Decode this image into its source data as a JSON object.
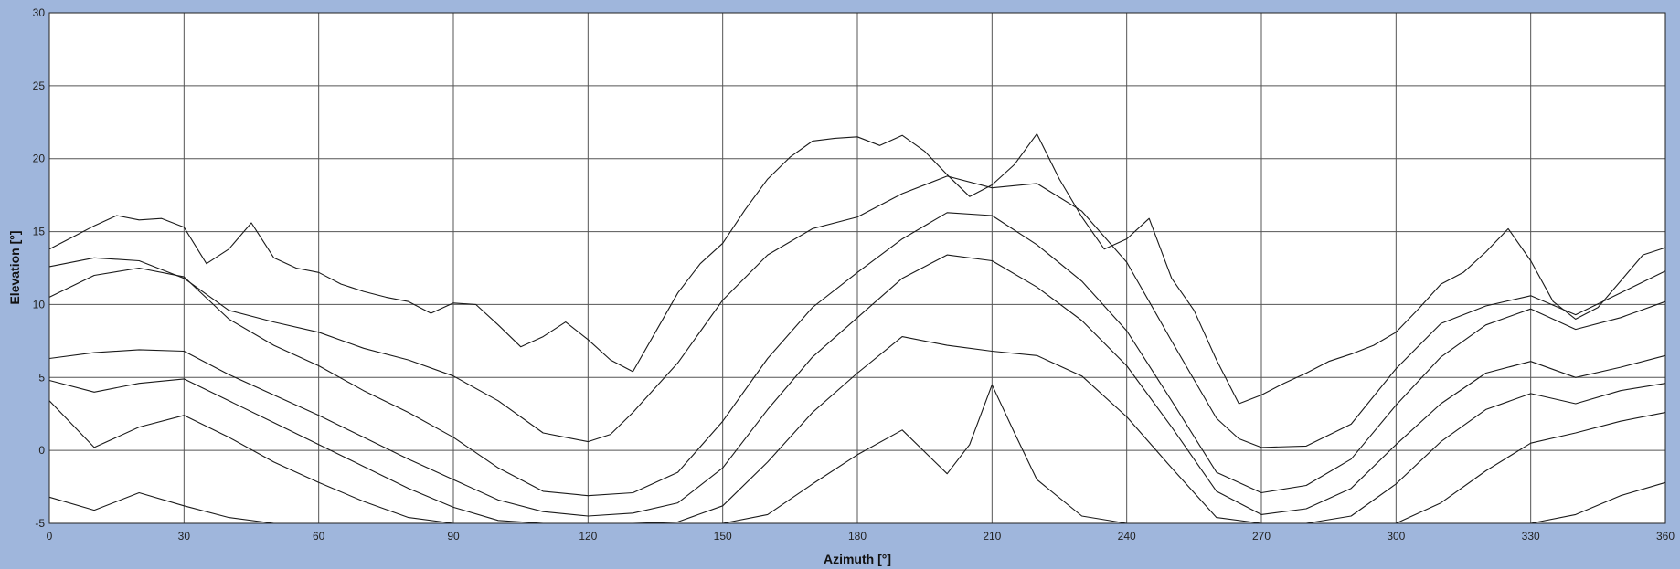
{
  "chart_data": {
    "type": "line",
    "title": "",
    "xlabel": "Azimuth [°]",
    "ylabel": "Elevation [°]",
    "xlim": [
      0,
      360
    ],
    "ylim": [
      -5,
      30
    ],
    "x_ticks": [
      0,
      30,
      60,
      90,
      120,
      150,
      180,
      210,
      240,
      270,
      300,
      330,
      360
    ],
    "y_ticks": [
      -5,
      0,
      5,
      10,
      15,
      20,
      25,
      30
    ],
    "grid": true,
    "legend": "none",
    "colors": {
      "frame": "#9fb6dc",
      "plot_bg": "#ffffff",
      "line": "#1a1a1a",
      "grid": "#555555"
    },
    "series": [
      {
        "x": [
          0,
          5,
          10,
          15,
          20,
          25,
          30,
          35,
          40,
          45,
          50,
          55,
          60,
          65,
          70,
          75,
          80,
          85,
          90,
          95,
          100,
          105,
          110,
          115,
          120,
          125,
          130,
          135,
          140,
          145,
          150,
          155,
          160,
          165,
          170,
          175,
          180,
          185,
          190,
          195,
          200,
          205,
          210,
          215,
          220,
          225,
          230,
          235,
          240,
          245,
          250,
          255,
          260,
          265,
          270,
          275,
          280,
          285,
          290,
          295,
          300,
          305,
          310,
          315,
          320,
          325,
          330,
          335,
          340,
          345,
          350,
          355,
          360
        ],
        "values": [
          13.8,
          14.6,
          15.4,
          16.1,
          15.8,
          15.9,
          15.3,
          12.8,
          13.8,
          15.6,
          13.2,
          12.5,
          12.2,
          11.4,
          10.9,
          10.5,
          10.2,
          9.4,
          10.1,
          10.0,
          8.6,
          7.1,
          7.8,
          8.8,
          7.6,
          6.2,
          5.4,
          8.1,
          10.8,
          12.8,
          14.2,
          16.5,
          18.6,
          20.1,
          21.2,
          21.4,
          21.5,
          20.9,
          21.6,
          20.5,
          18.9,
          17.4,
          18.2,
          19.6,
          21.7,
          18.6,
          16.0,
          13.8,
          14.5,
          15.9,
          11.8,
          9.6,
          6.2,
          3.2,
          3.8,
          4.6,
          5.3,
          6.1,
          6.6,
          7.2,
          8.1,
          9.7,
          11.4,
          12.2,
          13.6,
          15.2,
          13.0,
          10.2,
          9.0,
          9.8,
          11.6,
          13.4,
          13.9
        ]
      },
      {
        "x": [
          0,
          10,
          20,
          30,
          40,
          50,
          60,
          70,
          80,
          90,
          100,
          110,
          115,
          120,
          125,
          130,
          140,
          150,
          160,
          170,
          180,
          190,
          200,
          210,
          220,
          230,
          240,
          250,
          260,
          265,
          270,
          280,
          290,
          300,
          310,
          320,
          330,
          340,
          350,
          360
        ],
        "values": [
          12.6,
          13.2,
          13.0,
          11.8,
          9.6,
          8.8,
          8.1,
          7.0,
          6.2,
          5.1,
          3.4,
          1.2,
          0.9,
          0.6,
          1.1,
          2.6,
          6.0,
          10.3,
          13.4,
          15.2,
          16.0,
          17.6,
          18.8,
          18.0,
          18.3,
          16.4,
          12.9,
          7.5,
          2.2,
          0.8,
          0.2,
          0.3,
          1.8,
          5.6,
          8.7,
          9.9,
          10.6,
          9.3,
          10.8,
          12.3
        ]
      },
      {
        "x": [
          0,
          10,
          20,
          30,
          40,
          50,
          60,
          70,
          80,
          90,
          100,
          110,
          120,
          130,
          140,
          150,
          160,
          170,
          180,
          190,
          200,
          210,
          220,
          230,
          240,
          250,
          260,
          270,
          280,
          290,
          300,
          310,
          320,
          330,
          340,
          350,
          360
        ],
        "values": [
          10.5,
          12.0,
          12.5,
          11.9,
          9.0,
          7.2,
          5.8,
          4.1,
          2.6,
          0.9,
          -1.2,
          -2.8,
          -3.1,
          -2.9,
          -1.5,
          2.0,
          6.3,
          9.8,
          12.2,
          14.5,
          16.3,
          16.1,
          14.1,
          11.6,
          8.2,
          3.4,
          -1.5,
          -2.9,
          -2.4,
          -0.6,
          3.1,
          6.4,
          8.6,
          9.7,
          8.3,
          9.1,
          10.2
        ]
      },
      {
        "x": [
          0,
          10,
          20,
          30,
          40,
          50,
          60,
          70,
          80,
          90,
          100,
          110,
          120,
          130,
          140,
          150,
          160,
          170,
          180,
          190,
          200,
          210,
          220,
          230,
          240,
          250,
          260,
          270,
          280,
          290,
          300,
          310,
          320,
          330,
          340,
          350,
          360
        ],
        "values": [
          6.3,
          6.7,
          6.9,
          6.8,
          5.2,
          3.8,
          2.4,
          0.9,
          -0.6,
          -2.0,
          -3.4,
          -4.2,
          -4.5,
          -4.3,
          -3.6,
          -1.2,
          2.8,
          6.4,
          9.1,
          11.8,
          13.4,
          13.0,
          11.2,
          8.9,
          5.8,
          1.6,
          -2.8,
          -4.4,
          -4.0,
          -2.6,
          0.4,
          3.2,
          5.3,
          6.1,
          5.0,
          5.7,
          6.5
        ]
      },
      {
        "x": [
          0,
          10,
          20,
          30,
          40,
          50,
          60,
          70,
          80,
          90,
          100,
          110,
          120,
          130,
          140,
          150,
          160,
          170,
          180,
          190,
          200,
          210,
          220,
          230,
          240,
          250,
          260,
          270,
          280,
          290,
          300,
          310,
          320,
          330,
          340,
          350,
          360
        ],
        "values": [
          4.8,
          4.0,
          4.6,
          4.9,
          3.4,
          1.9,
          0.4,
          -1.1,
          -2.6,
          -3.9,
          -4.8,
          -5.0,
          -5.0,
          -5.0,
          -4.9,
          -3.8,
          -0.8,
          2.6,
          5.3,
          7.8,
          7.2,
          6.8,
          6.5,
          5.1,
          2.3,
          -1.2,
          -4.6,
          -5.0,
          -5.0,
          -4.5,
          -2.3,
          0.6,
          2.8,
          3.9,
          3.2,
          4.1,
          4.6
        ]
      },
      {
        "x": [
          0,
          10,
          20,
          30,
          40,
          50,
          60,
          70,
          80,
          90,
          100,
          110,
          120,
          130,
          140,
          150,
          160,
          170,
          180,
          190,
          200,
          205,
          210,
          215,
          220,
          230,
          240,
          250,
          260,
          270,
          280,
          290,
          300,
          310,
          320,
          330,
          340,
          350,
          360
        ],
        "values": [
          3.4,
          0.2,
          1.6,
          2.4,
          0.9,
          -0.8,
          -2.2,
          -3.5,
          -4.6,
          -5.0,
          -5.0,
          -5.0,
          -5.0,
          -5.0,
          -5.0,
          -5.0,
          -4.4,
          -2.3,
          -0.3,
          1.4,
          -1.6,
          0.4,
          4.5,
          1.2,
          -2.0,
          -4.5,
          -5.0,
          -5.0,
          -5.0,
          -5.0,
          -5.0,
          -5.0,
          -5.0,
          -3.6,
          -1.4,
          0.5,
          1.2,
          2.0,
          2.6
        ]
      },
      {
        "x": [
          0,
          10,
          20,
          30,
          40,
          50,
          60,
          70,
          80,
          90,
          100,
          110,
          120,
          130,
          140,
          150,
          160,
          170,
          180,
          190,
          200,
          210,
          220,
          230,
          240,
          250,
          260,
          270,
          280,
          290,
          300,
          310,
          320,
          330,
          340,
          350,
          360
        ],
        "values": [
          -3.2,
          -4.1,
          -2.9,
          -3.8,
          -4.6,
          -5.0,
          -5.0,
          -5.0,
          -5.0,
          -5.0,
          -5.0,
          -5.0,
          -5.0,
          -5.0,
          -5.0,
          -5.0,
          -5.0,
          -5.0,
          -5.0,
          -5.0,
          -5.0,
          -5.0,
          -5.0,
          -5.0,
          -5.0,
          -5.0,
          -5.0,
          -5.0,
          -5.0,
          -5.0,
          -5.0,
          -5.0,
          -5.0,
          -5.0,
          -4.4,
          -3.1,
          -2.2
        ]
      }
    ]
  }
}
